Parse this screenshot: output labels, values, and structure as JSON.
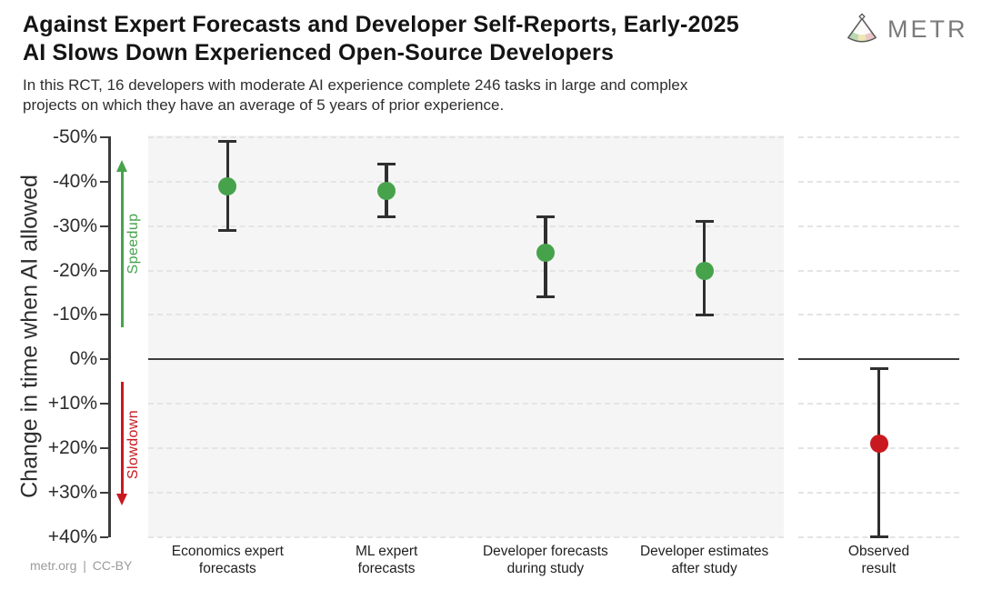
{
  "header": {
    "title_lines": [
      "Against Expert Forecasts and Developer Self-Reports, Early-2025",
      "AI Slows Down Experienced Open-Source Developers"
    ],
    "subtitle_lines": [
      "In this RCT, 16 developers with moderate AI experience complete 246 tasks in large and complex",
      "projects on which they have an average of 5 years of prior experience."
    ],
    "logo": {
      "text": "METR",
      "icon": "metr-fan-icon"
    }
  },
  "footer": {
    "credit": "metr.org | CC-BY"
  },
  "colors": {
    "speedup_green": "#46a34c",
    "slowdown_red": "#c8191f",
    "panel_bg": "#f5f5f5",
    "grid": "#e4e4e4",
    "zero_line": "#3c3c3c",
    "errorbar": "#2f2f2f"
  },
  "chart_data": {
    "type": "scatter",
    "title": "Against Expert Forecasts and Developer Self-Reports, Early-2025 AI Slows Down Experienced Open-Source Developers",
    "subtitle": "In this RCT, 16 developers with moderate AI experience complete 246 tasks in large and complex projects on which they have an average of 5 years of prior experience.",
    "ylabel": "Change in time when AI allowed",
    "unit": "percent",
    "ylim": [
      -50,
      40
    ],
    "y_axis_inverted": true,
    "grid": true,
    "yticks": [
      {
        "value": -50,
        "label": "-50%"
      },
      {
        "value": -40,
        "label": "-40%"
      },
      {
        "value": -30,
        "label": "-30%"
      },
      {
        "value": -20,
        "label": "-20%"
      },
      {
        "value": -10,
        "label": "-10%"
      },
      {
        "value": 0,
        "label": "0%"
      },
      {
        "value": 10,
        "label": "+10%"
      },
      {
        "value": 20,
        "label": "+20%"
      },
      {
        "value": 30,
        "label": "+30%"
      },
      {
        "value": 40,
        "label": "+40%"
      }
    ],
    "direction_annotations": [
      {
        "label": "Speedup",
        "direction": "up",
        "color": "#46a34c"
      },
      {
        "label": "Slowdown",
        "direction": "down",
        "color": "#c8191f"
      }
    ],
    "points": [
      {
        "category_lines": [
          "Economics expert",
          "forecasts"
        ],
        "value": -39,
        "ci": [
          -49,
          -29
        ],
        "color": "#46a34c",
        "panel": "main"
      },
      {
        "category_lines": [
          "ML expert",
          "forecasts"
        ],
        "value": -38,
        "ci": [
          -44,
          -32
        ],
        "color": "#46a34c",
        "panel": "main"
      },
      {
        "category_lines": [
          "Developer forecasts",
          "during study"
        ],
        "value": -24,
        "ci": [
          -32,
          -14
        ],
        "color": "#46a34c",
        "panel": "main"
      },
      {
        "category_lines": [
          "Developer estimates",
          "after study"
        ],
        "value": -20,
        "ci": [
          -31,
          -10
        ],
        "color": "#46a34c",
        "panel": "main"
      },
      {
        "category_lines": [
          "Observed",
          "result"
        ],
        "value": 19,
        "ci": [
          2,
          40
        ],
        "color": "#c8191f",
        "panel": "observed"
      }
    ]
  }
}
